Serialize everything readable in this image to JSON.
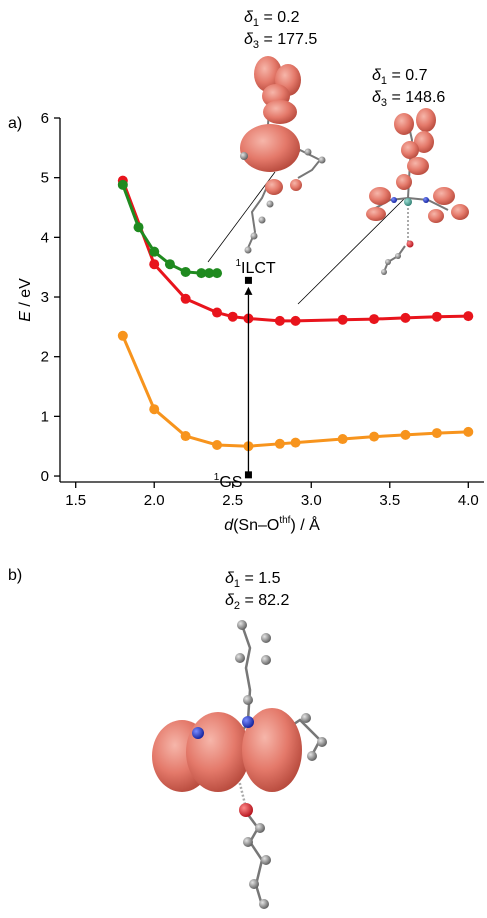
{
  "panels": {
    "a": "a)",
    "b": "b)"
  },
  "chart_data": {
    "type": "line",
    "xlabel_parts": [
      "d",
      "(Sn–O",
      "thf",
      ") / Å"
    ],
    "ylabel_parts": [
      "E",
      " / eV"
    ],
    "xlim": [
      1.4,
      4.1
    ],
    "ylim": [
      -0.1,
      6
    ],
    "x_ticks": [
      1.5,
      2.0,
      2.5,
      3.0,
      3.5,
      4.0
    ],
    "x_tick_labels": [
      "1.5",
      "2.0",
      "2.5",
      "3.0",
      "3.5",
      "4.0"
    ],
    "y_ticks": [
      0,
      1,
      2,
      3,
      4,
      5,
      6
    ],
    "y_tick_labels": [
      "0",
      "1",
      "2",
      "3",
      "4",
      "5",
      "6"
    ],
    "grid": false,
    "colors": {
      "red": "#e8141c",
      "green": "#1f8a1f",
      "orange": "#f7941d"
    },
    "series": [
      {
        "color": "red",
        "x": [
          1.8,
          2.0,
          2.2,
          2.4,
          2.5,
          2.6,
          2.8,
          2.9,
          3.2,
          3.4,
          3.6,
          3.8,
          4.0
        ],
        "y": [
          4.95,
          3.55,
          2.97,
          2.74,
          2.67,
          2.64,
          2.6,
          2.6,
          2.62,
          2.63,
          2.65,
          2.67,
          2.68
        ]
      },
      {
        "color": "green",
        "x": [
          1.8,
          1.9,
          2.0,
          2.1,
          2.2,
          2.3,
          2.35,
          2.4
        ],
        "y": [
          4.88,
          4.17,
          3.76,
          3.55,
          3.42,
          3.4,
          3.4,
          3.4
        ]
      },
      {
        "color": "orange",
        "x": [
          1.8,
          2.0,
          2.2,
          2.4,
          2.6,
          2.8,
          2.9,
          3.2,
          3.4,
          3.6,
          3.8,
          4.0
        ],
        "y": [
          2.35,
          1.12,
          0.67,
          0.52,
          0.5,
          0.54,
          0.56,
          0.62,
          0.66,
          0.69,
          0.72,
          0.74
        ]
      }
    ],
    "transition": {
      "x": 2.6,
      "y_from": 0.02,
      "y_to": 3.17,
      "label_start": "1GS",
      "label_end": "1ILCT"
    }
  },
  "annotations": {
    "top_center": {
      "line1": "δ1 = 0.2",
      "line2": "δ3 = 177.5"
    },
    "top_right": {
      "line1": "δ1 = 0.7",
      "line2": "δ3 = 148.6"
    },
    "panel_b": {
      "line1": "δ1 = 1.5",
      "line2": "δ2 = 82.2"
    }
  }
}
